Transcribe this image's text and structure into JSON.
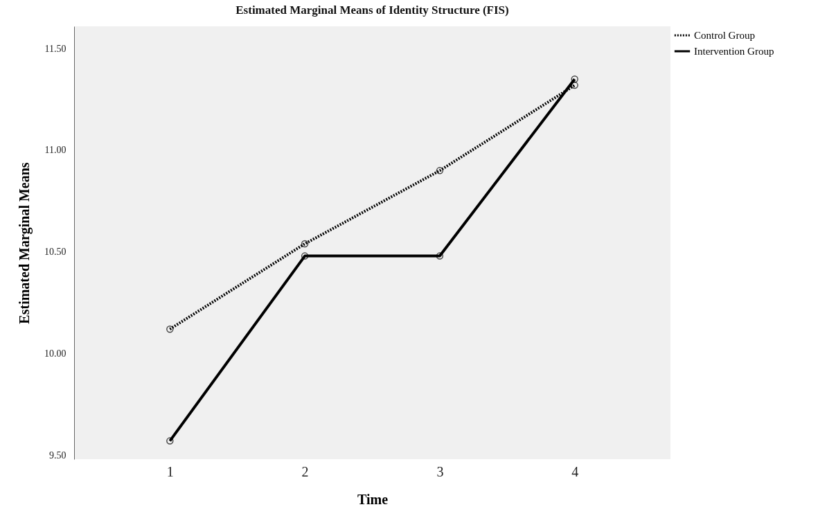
{
  "chart_data": {
    "type": "line",
    "title": "Estimated Marginal Means of Identity Structure (FIS)",
    "xlabel": "Time",
    "ylabel": "Estimated Marginal Means",
    "categories": [
      "1",
      "2",
      "3",
      "4"
    ],
    "series": [
      {
        "name": "Control Group",
        "color": "#000000",
        "line_style": "dotted",
        "values": [
          10.12,
          10.54,
          10.9,
          11.32
        ]
      },
      {
        "name": "Intervention Group",
        "color": "#000000",
        "line_style": "solid",
        "values": [
          9.57,
          10.48,
          10.48,
          11.35
        ]
      }
    ],
    "ylim": [
      9.48,
      11.61
    ],
    "yticks": [
      {
        "value": 9.5,
        "label": "9.50"
      },
      {
        "value": 10,
        "label": "10.00"
      },
      {
        "value": 10.5,
        "label": "10.50"
      },
      {
        "value": 11,
        "label": "11.00"
      },
      {
        "value": 11.5,
        "label": "11.50"
      }
    ],
    "grid": false,
    "legend": "top right",
    "marker": "circle"
  }
}
